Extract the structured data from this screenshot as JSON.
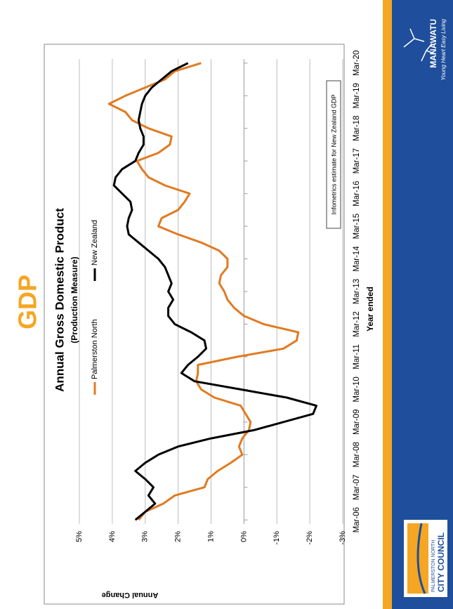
{
  "slide": {
    "title": "GDP",
    "council": [
      "PALMERSTON NORTH",
      "CITY COUNCIL"
    ],
    "brand": "MANAWATU",
    "tagline": "Young Heart Easy Living"
  },
  "chart_data": {
    "type": "line",
    "title": "Annual Gross Domestic Product",
    "subtitle": "(Production Measure)",
    "y_label": "Annual Change",
    "x_label": "Year ended",
    "annotation": "Infometrics estimate for New Zealand GDP",
    "categories": [
      "Mar-06",
      null,
      null,
      null,
      "Mar-07",
      null,
      null,
      null,
      "Mar-08",
      null,
      null,
      null,
      "Mar-09",
      null,
      null,
      null,
      "Mar-10",
      null,
      null,
      null,
      "Mar-11",
      null,
      null,
      null,
      "Mar-12",
      null,
      null,
      null,
      "Mar-13",
      null,
      null,
      null,
      "Mar-14",
      null,
      null,
      null,
      "Mar-15",
      null,
      null,
      null,
      "Mar-16",
      null,
      null,
      null,
      "Mar-17",
      null,
      null,
      null,
      "Mar-18",
      null,
      null,
      null,
      "Mar-19",
      null,
      null,
      null,
      "Mar-20"
    ],
    "series": [
      {
        "name": "Palmerston North",
        "color": "#e07b22",
        "values": [
          3.2,
          3.0,
          2.45,
          2.1,
          1.2,
          1.1,
          0.8,
          0.4,
          0.05,
          0.15,
          0.05,
          -0.15,
          -0.2,
          -0.05,
          0.1,
          0.9,
          1.3,
          1.45,
          1.4,
          1.4,
          0.2,
          -1.2,
          -1.6,
          -1.65,
          -0.6,
          0,
          0.3,
          0.5,
          0.6,
          0.75,
          0.7,
          0.5,
          0.5,
          0.75,
          1.3,
          2.0,
          2.6,
          2.5,
          2.0,
          1.8,
          1.65,
          2.4,
          2.9,
          3.1,
          3.25,
          2.6,
          2.25,
          2.2,
          2.9,
          3.4,
          3.6,
          4.1,
          3.6,
          3.0,
          2.4,
          2.1,
          1.3
        ]
      },
      {
        "name": "New Zealand",
        "color": "#000000",
        "values": [
          3.3,
          3.0,
          2.7,
          2.9,
          2.75,
          3.0,
          3.3,
          3.0,
          2.6,
          2.0,
          1.0,
          -0.3,
          -1.2,
          -2.1,
          -2.2,
          -1.3,
          0.1,
          1.5,
          1.9,
          1.7,
          1.4,
          1.15,
          1.2,
          1.6,
          2.1,
          2.3,
          2.3,
          2.15,
          2.3,
          2.2,
          2.3,
          2.4,
          2.6,
          2.9,
          3.2,
          3.5,
          3.55,
          3.5,
          3.4,
          3.45,
          3.7,
          3.95,
          3.9,
          3.7,
          3.3,
          3.2,
          3.05,
          3.05,
          3.15,
          3.2,
          3.15,
          3.1,
          3.0,
          2.8,
          2.5,
          2.2,
          1.7
        ]
      }
    ],
    "ylim": [
      -3,
      5
    ],
    "yticks": [
      {
        "value": 5,
        "label": "5%"
      },
      {
        "value": 4,
        "label": "4%"
      },
      {
        "value": 3,
        "label": "3%"
      },
      {
        "value": 2,
        "label": "2%"
      },
      {
        "value": 1,
        "label": "1%"
      },
      {
        "value": 0,
        "label": "0%"
      },
      {
        "value": -1,
        "label": "-1%"
      },
      {
        "value": -2,
        "label": "-2%"
      },
      {
        "value": -3,
        "label": "-3%"
      }
    ],
    "grid": true,
    "legend": "top"
  }
}
